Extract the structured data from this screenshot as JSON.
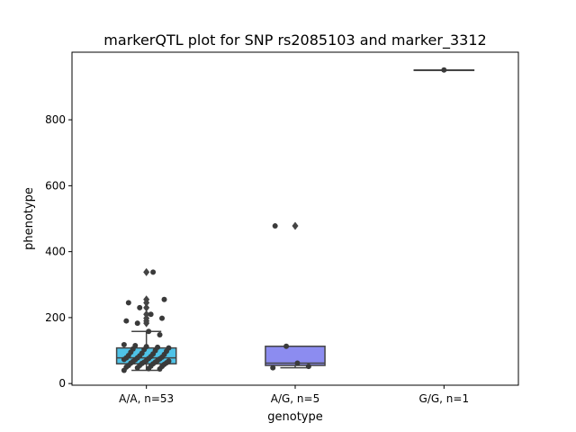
{
  "chart_data": {
    "type": "box",
    "title": "markerQTL plot for SNP rs2085103 and marker_3312",
    "xlabel": "genotype",
    "ylabel": "phenotype",
    "ylim": [
      -5,
      1005
    ],
    "yticks": [
      0,
      200,
      400,
      600,
      800
    ],
    "categories": [
      "A/A, n=53",
      "A/G, n=5",
      "G/G, n=1"
    ],
    "colors": {
      "box_aa": "#4fc3e8",
      "box_ag": "#8c8cf0",
      "points": "#3a3a3a",
      "lines": "#444444"
    },
    "boxes": [
      {
        "category": "A/A, n=53",
        "whisker_low": 40,
        "q1": 60,
        "median": 78,
        "q3": 108,
        "whisker_high": 158,
        "outliers": [
          183,
          190,
          198,
          210,
          230,
          245,
          255,
          338
        ]
      },
      {
        "category": "A/G, n=5",
        "whisker_low": 48,
        "q1": 55,
        "median": 62,
        "q3": 113,
        "whisker_high": 113,
        "outliers": [
          478
        ]
      },
      {
        "category": "G/G, n=1",
        "whisker_low": 951,
        "q1": 951,
        "median": 951,
        "q3": 951,
        "whisker_high": 951,
        "outliers": []
      }
    ],
    "points": [
      {
        "category": "A/A, n=53",
        "values": [
          40,
          44,
          45,
          48,
          50,
          52,
          53,
          55,
          55,
          58,
          60,
          61,
          62,
          63,
          65,
          65,
          67,
          68,
          70,
          70,
          72,
          73,
          75,
          76,
          78,
          78,
          80,
          82,
          84,
          85,
          88,
          90,
          92,
          95,
          98,
          100,
          103,
          105,
          108,
          110,
          112,
          115,
          118,
          148,
          158,
          183,
          190,
          198,
          210,
          230,
          245,
          255,
          338
        ]
      },
      {
        "category": "A/G, n=5",
        "values": [
          48,
          52,
          62,
          113,
          478
        ]
      },
      {
        "category": "G/G, n=1",
        "values": [
          951
        ]
      }
    ]
  }
}
